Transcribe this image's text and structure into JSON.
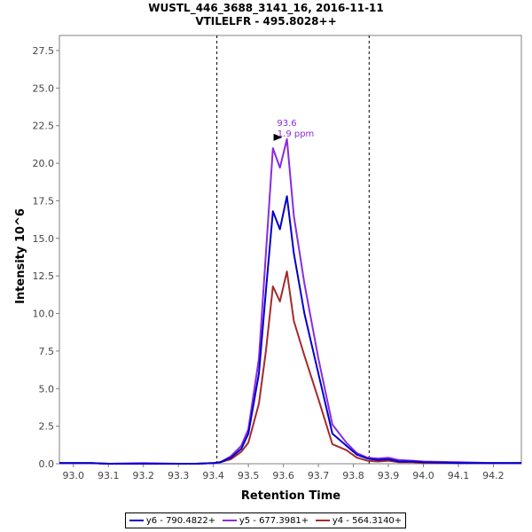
{
  "chart_data": {
    "type": "line",
    "title": "WUSTL_446_3688_3141_16, 2016-11-11",
    "subtitle": "VTILELFR - 495.8028++",
    "xlabel": "Retention Time",
    "ylabel": "Intensity 10^6",
    "xlim": [
      92.96,
      94.28
    ],
    "ylim": [
      0,
      28.5
    ],
    "x_ticks": [
      "93.0",
      "93.1",
      "93.2",
      "93.3",
      "93.4",
      "93.5",
      "93.6",
      "93.7",
      "93.8",
      "93.9",
      "94.0",
      "94.1",
      "94.2"
    ],
    "y_ticks": [
      "0.0",
      "2.5",
      "5.0",
      "7.5",
      "10.0",
      "12.5",
      "15.0",
      "17.5",
      "20.0",
      "22.5",
      "25.0",
      "27.5"
    ],
    "grid": false,
    "legend_position": "bottom",
    "boundary_lines": [
      93.41,
      93.845
    ],
    "peak_annotation": {
      "x": 93.61,
      "y": 21.6,
      "label_rt": "93.6",
      "label_ppm": "1.9 ppm"
    },
    "x": [
      92.96,
      93.05,
      93.1,
      93.2,
      93.3,
      93.35,
      93.4,
      93.42,
      93.45,
      93.48,
      93.5,
      93.53,
      93.55,
      93.57,
      93.59,
      93.61,
      93.63,
      93.66,
      93.7,
      93.74,
      93.78,
      93.81,
      93.84,
      93.87,
      93.9,
      93.93,
      93.97,
      94.0,
      94.1,
      94.2,
      94.28
    ],
    "series": [
      {
        "name": "y6 - 790.4822+",
        "color": "#0000cc",
        "values": [
          0.05,
          0.05,
          0.0,
          0.0,
          0.0,
          0.0,
          0.05,
          0.1,
          0.4,
          1.0,
          2.0,
          6.0,
          11.5,
          16.8,
          15.6,
          17.8,
          14.0,
          10.0,
          6.0,
          2.0,
          1.2,
          0.6,
          0.35,
          0.25,
          0.3,
          0.15,
          0.15,
          0.1,
          0.05,
          0.05,
          0.05
        ]
      },
      {
        "name": "y5 - 677.3981+",
        "color": "#8a2be2",
        "values": [
          0.05,
          0.05,
          0.0,
          0.05,
          0.0,
          0.0,
          0.05,
          0.1,
          0.5,
          1.2,
          2.3,
          7.0,
          14.0,
          21.0,
          19.7,
          21.6,
          16.5,
          12.0,
          7.0,
          2.6,
          1.4,
          0.7,
          0.4,
          0.35,
          0.4,
          0.25,
          0.2,
          0.15,
          0.1,
          0.05,
          0.05
        ]
      },
      {
        "name": "y4 - 564.3140+",
        "color": "#a52a2a",
        "values": [
          0.05,
          0.05,
          0.0,
          0.0,
          0.0,
          0.0,
          0.05,
          0.1,
          0.3,
          0.8,
          1.4,
          4.0,
          7.5,
          11.8,
          10.8,
          12.8,
          9.5,
          7.2,
          4.3,
          1.3,
          0.9,
          0.4,
          0.2,
          0.15,
          0.2,
          0.1,
          0.1,
          0.05,
          0.05,
          0.05,
          0.05
        ]
      }
    ]
  }
}
